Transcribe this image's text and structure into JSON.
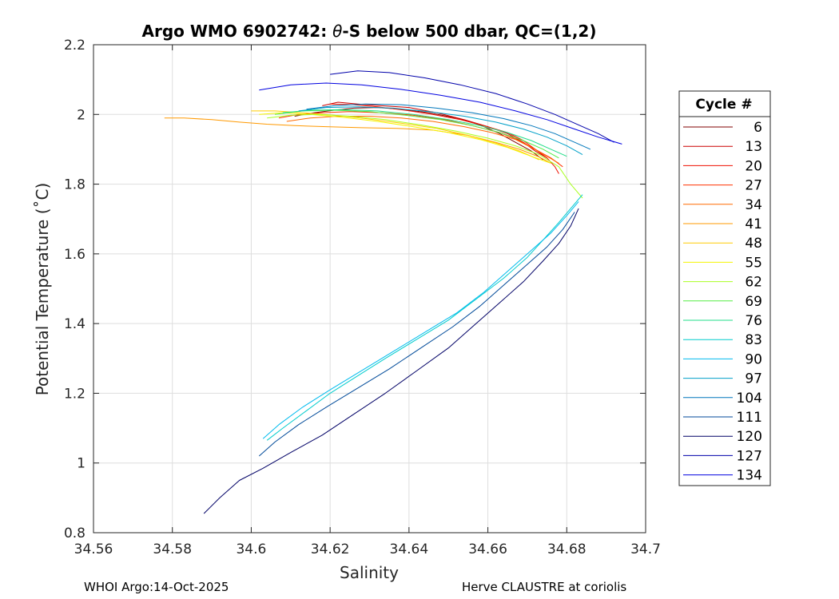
{
  "chart_data": {
    "type": "line",
    "title_main": "Argo WMO 6902742: ",
    "title_theta": "θ",
    "title_rest": "-S below 500 dbar,  QC=(1,2)",
    "xlabel": "Salinity",
    "ylabel": "Potential Temperature (˚C)",
    "xlim": [
      34.56,
      34.7
    ],
    "ylim": [
      0.8,
      2.2
    ],
    "xticks": [
      34.56,
      34.58,
      34.6,
      34.62,
      34.64,
      34.66,
      34.68,
      34.7
    ],
    "xtick_labels": [
      "34.56",
      "34.58",
      "34.6",
      "34.62",
      "34.64",
      "34.66",
      "34.68",
      "34.7"
    ],
    "yticks": [
      0.8,
      1.0,
      1.2,
      1.4,
      1.6,
      1.8,
      2.0,
      2.2
    ],
    "ytick_labels": [
      "0.8",
      "1",
      "1.2",
      "1.4",
      "1.6",
      "1.8",
      "2",
      "2.2"
    ],
    "grid": true,
    "legend_title": "Cycle #",
    "legend_placement": "right-outside",
    "series": [
      {
        "name": "6",
        "color": "#800000",
        "x": [
          34.611,
          34.616,
          34.621,
          34.626,
          34.632,
          34.638,
          34.645,
          34.652,
          34.658,
          34.663,
          34.667,
          34.671,
          34.674
        ],
        "y": [
          1.995,
          2.005,
          2.012,
          2.018,
          2.02,
          2.015,
          2.005,
          1.99,
          1.97,
          1.945,
          1.92,
          1.895,
          1.87
        ]
      },
      {
        "name": "13",
        "color": "#cc0000",
        "x": [
          34.618,
          34.622,
          34.627,
          34.633,
          34.64,
          34.647,
          34.654,
          34.66,
          34.665,
          34.669,
          34.672,
          34.675
        ],
        "y": [
          2.025,
          2.035,
          2.03,
          2.025,
          2.02,
          2.005,
          1.985,
          1.965,
          1.945,
          1.92,
          1.895,
          1.875
        ]
      },
      {
        "name": "20",
        "color": "#ee1100",
        "x": [
          34.62,
          34.626,
          34.632,
          34.639,
          34.646,
          34.653,
          34.659,
          34.665,
          34.669,
          34.672,
          34.675,
          34.677,
          34.678
        ],
        "y": [
          2.03,
          2.028,
          2.022,
          2.012,
          2.0,
          1.985,
          1.968,
          1.948,
          1.925,
          1.9,
          1.875,
          1.85,
          1.83
        ]
      },
      {
        "name": "27",
        "color": "#ff3300",
        "x": [
          34.607,
          34.612,
          34.618,
          34.625,
          34.633,
          34.641,
          34.649,
          34.656,
          34.663,
          34.668,
          34.672,
          34.676,
          34.679
        ],
        "y": [
          1.99,
          2.0,
          2.005,
          2.008,
          2.005,
          1.998,
          1.985,
          1.968,
          1.948,
          1.925,
          1.9,
          1.875,
          1.85
        ]
      },
      {
        "name": "34",
        "color": "#ff6a00",
        "x": [
          34.609,
          34.615,
          34.622,
          34.63,
          34.638,
          34.646,
          34.654,
          34.661,
          34.667,
          34.671,
          34.675,
          34.678
        ],
        "y": [
          1.98,
          1.99,
          1.995,
          1.995,
          1.99,
          1.98,
          1.965,
          1.948,
          1.928,
          1.905,
          1.88,
          1.86
        ]
      },
      {
        "name": "41",
        "color": "#ff9900",
        "x": [
          34.578,
          34.583,
          34.59,
          34.597,
          34.604,
          34.611,
          34.619,
          34.628,
          34.637,
          34.646,
          34.655,
          34.662,
          34.668,
          34.673,
          34.676
        ],
        "y": [
          1.99,
          1.99,
          1.985,
          1.978,
          1.972,
          1.968,
          1.965,
          1.962,
          1.96,
          1.955,
          1.94,
          1.92,
          1.9,
          1.878,
          1.86
        ]
      },
      {
        "name": "48",
        "color": "#ffcc00",
        "x": [
          34.6,
          34.606,
          34.613,
          34.621,
          34.629,
          34.638,
          34.647,
          34.655,
          34.662,
          34.668,
          34.673
        ],
        "y": [
          2.01,
          2.01,
          2.005,
          1.998,
          1.988,
          1.975,
          1.96,
          1.94,
          1.918,
          1.895,
          1.87
        ]
      },
      {
        "name": "55",
        "color": "#f5f500",
        "x": [
          34.602,
          34.608,
          34.615,
          34.623,
          34.632,
          34.641,
          34.65,
          34.658,
          34.665,
          34.671,
          34.676
        ],
        "y": [
          2.0,
          2.005,
          2.0,
          1.992,
          1.98,
          1.965,
          1.948,
          1.928,
          1.905,
          1.88,
          1.86
        ]
      },
      {
        "name": "62",
        "color": "#aaff22",
        "x": [
          34.604,
          34.61,
          34.617,
          34.625,
          34.634,
          34.643,
          34.652,
          34.66,
          34.667,
          34.673,
          34.678,
          34.681,
          34.684
        ],
        "y": [
          1.99,
          1.998,
          2.0,
          1.995,
          1.985,
          1.97,
          1.952,
          1.932,
          1.91,
          1.885,
          1.85,
          1.8,
          1.76
        ]
      },
      {
        "name": "69",
        "color": "#55ee44",
        "x": [
          34.606,
          34.613,
          34.621,
          34.63,
          34.639,
          34.648,
          34.656,
          34.663,
          34.669,
          34.674,
          34.678
        ],
        "y": [
          2.0,
          2.01,
          2.012,
          2.008,
          1.998,
          1.985,
          1.968,
          1.948,
          1.925,
          1.9,
          1.875
        ]
      },
      {
        "name": "76",
        "color": "#22dd88",
        "x": [
          34.608,
          34.615,
          34.623,
          34.632,
          34.641,
          34.65,
          34.658,
          34.665,
          34.671,
          34.676,
          34.68
        ],
        "y": [
          2.005,
          2.012,
          2.014,
          2.01,
          2.0,
          1.985,
          1.968,
          1.948,
          1.925,
          1.9,
          1.88
        ]
      },
      {
        "name": "83",
        "color": "#00cccc",
        "x": [
          34.604,
          34.608,
          34.614,
          34.62,
          34.627,
          34.634,
          34.642,
          34.65,
          34.657,
          34.664,
          34.67,
          34.674,
          34.678,
          34.681,
          34.684
        ],
        "y": [
          1.065,
          1.1,
          1.15,
          1.2,
          1.25,
          1.3,
          1.355,
          1.41,
          1.47,
          1.53,
          1.59,
          1.64,
          1.69,
          1.73,
          1.77
        ]
      },
      {
        "name": "90",
        "color": "#00bbee",
        "x": [
          34.603,
          34.607,
          34.613,
          34.62,
          34.628,
          34.636,
          34.644,
          34.652,
          34.659,
          34.665,
          34.671,
          34.676,
          34.68,
          34.683
        ],
        "y": [
          1.07,
          1.11,
          1.16,
          1.21,
          1.265,
          1.32,
          1.375,
          1.43,
          1.49,
          1.55,
          1.61,
          1.66,
          1.71,
          1.75
        ]
      },
      {
        "name": "97",
        "color": "#00a0c8",
        "x": [
          34.612,
          34.619,
          34.627,
          34.636,
          34.645,
          34.654,
          34.662,
          34.669,
          34.675,
          34.68,
          34.684
        ],
        "y": [
          2.01,
          2.02,
          2.022,
          2.018,
          2.008,
          1.995,
          1.978,
          1.958,
          1.935,
          1.91,
          1.885
        ]
      },
      {
        "name": "104",
        "color": "#0077bb",
        "x": [
          34.614,
          34.621,
          34.629,
          34.638,
          34.647,
          34.656,
          34.664,
          34.671,
          34.677,
          34.682,
          34.686
        ],
        "y": [
          2.015,
          2.025,
          2.03,
          2.028,
          2.018,
          2.005,
          1.988,
          1.968,
          1.945,
          1.92,
          1.9
        ]
      },
      {
        "name": "111",
        "color": "#004a99",
        "x": [
          34.602,
          34.606,
          34.612,
          34.619,
          34.627,
          34.635,
          34.643,
          34.651,
          34.658,
          34.664,
          34.67,
          34.675,
          34.679,
          34.682
        ],
        "y": [
          1.02,
          1.06,
          1.11,
          1.16,
          1.215,
          1.27,
          1.33,
          1.39,
          1.45,
          1.51,
          1.57,
          1.62,
          1.67,
          1.72
        ]
      },
      {
        "name": "120",
        "color": "#000066",
        "x": [
          34.588,
          34.592,
          34.597,
          34.603,
          34.61,
          34.618,
          34.626,
          34.634,
          34.642,
          34.65,
          34.657,
          34.663,
          34.669,
          34.674,
          34.678,
          34.681,
          34.683
        ],
        "y": [
          0.855,
          0.9,
          0.95,
          0.985,
          1.03,
          1.08,
          1.14,
          1.2,
          1.265,
          1.33,
          1.4,
          1.46,
          1.52,
          1.58,
          1.63,
          1.68,
          1.73
        ]
      },
      {
        "name": "127",
        "color": "#0000aa",
        "x": [
          34.62,
          34.627,
          34.635,
          34.644,
          34.653,
          34.662,
          34.67,
          34.677,
          34.683,
          34.688,
          34.692
        ],
        "y": [
          2.115,
          2.125,
          2.12,
          2.105,
          2.085,
          2.06,
          2.03,
          2.0,
          1.97,
          1.945,
          1.92
        ]
      },
      {
        "name": "134",
        "color": "#0000e0",
        "x": [
          34.602,
          34.61,
          34.619,
          34.628,
          34.638,
          34.648,
          34.658,
          34.667,
          34.675,
          34.682,
          34.688,
          34.694
        ],
        "y": [
          2.07,
          2.085,
          2.09,
          2.085,
          2.072,
          2.055,
          2.035,
          2.01,
          1.985,
          1.958,
          1.935,
          1.915
        ]
      }
    ]
  },
  "footer": {
    "left": "WHOI Argo:14-Oct-2025",
    "right": "Herve CLAUSTRE at coriolis"
  }
}
